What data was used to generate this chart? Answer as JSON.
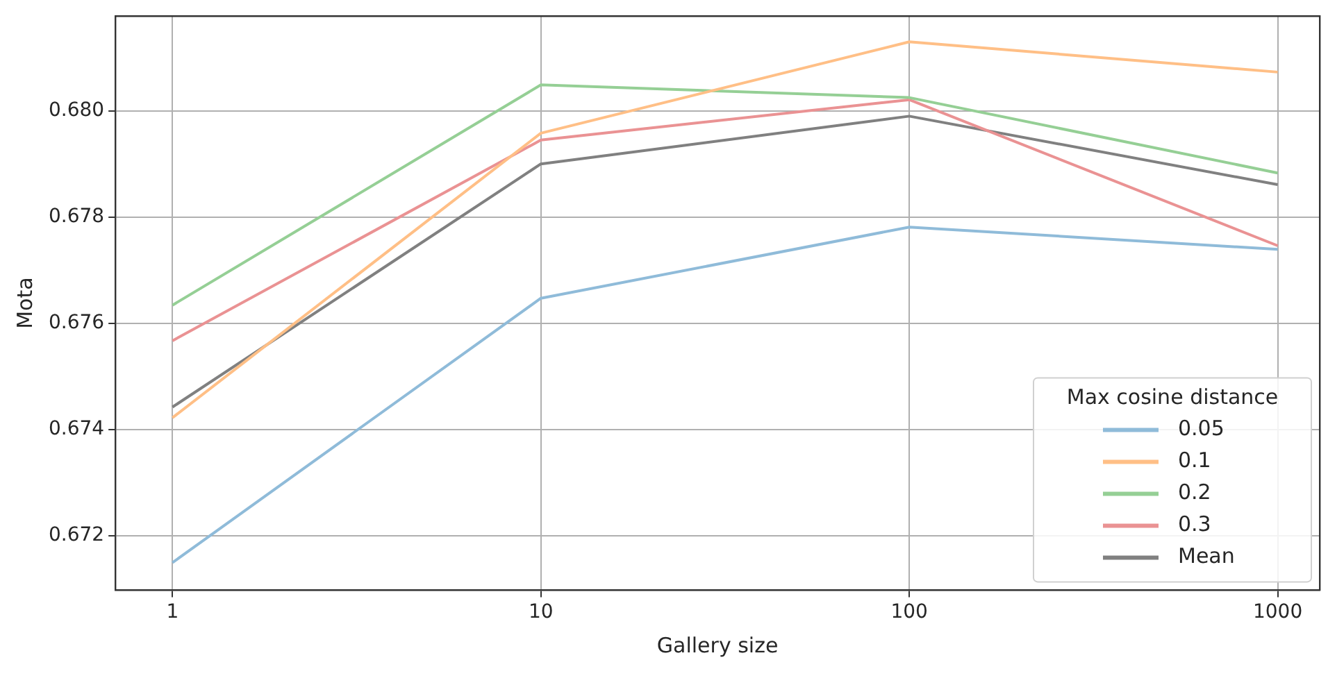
{
  "chart_data": {
    "type": "line",
    "xlabel": "Gallery size",
    "ylabel": "Mota",
    "legend_title": "Max cosine distance",
    "x": [
      1,
      10,
      100,
      1000
    ],
    "log": "x",
    "xlim": [
      0.712,
      1300
    ],
    "xticks": [
      1,
      10,
      100,
      1000
    ],
    "ylim": [
      0.67097,
      0.68179
    ],
    "yticks": [
      {
        "value": 0.672,
        "label": "0.672"
      },
      {
        "value": 0.674,
        "label": "0.674"
      },
      {
        "value": 0.676,
        "label": "0.676"
      },
      {
        "value": 0.678,
        "label": "0.678"
      },
      {
        "value": 0.68,
        "label": "0.680"
      }
    ],
    "grid": true,
    "legend": "bottom right",
    "marker": "none",
    "line_style": "solid",
    "series": [
      {
        "name": "0.05",
        "color": "#8fbbd9",
        "values": [
          0.67149,
          0.67647,
          0.67781,
          0.67739
        ]
      },
      {
        "name": "0.1",
        "color": "#ffbf86",
        "values": [
          0.67422,
          0.67958,
          0.6813,
          0.68073
        ]
      },
      {
        "name": "0.2",
        "color": "#95cf95",
        "values": [
          0.67634,
          0.68049,
          0.68025,
          0.67883
        ]
      },
      {
        "name": "0.3",
        "color": "#ea9293",
        "values": [
          0.67567,
          0.67945,
          0.68021,
          0.67746
        ]
      },
      {
        "name": "Mean",
        "color": "#808080",
        "values": [
          0.67442,
          0.679,
          0.6799,
          0.67861
        ]
      }
    ]
  }
}
